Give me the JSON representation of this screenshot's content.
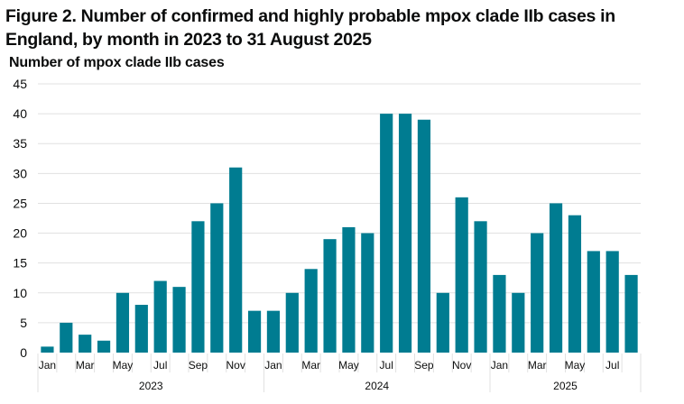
{
  "chart_data": {
    "type": "bar",
    "title": "Figure 2. Number of confirmed and highly probable mpox clade IIb cases in England, by month in 2023 to 31 August 2025",
    "xlabel": "",
    "ylabel": "Number of mpox clade IIb cases",
    "ylim": [
      0,
      45
    ],
    "yticks": [
      0,
      5,
      10,
      15,
      20,
      25,
      30,
      35,
      40,
      45
    ],
    "grid": true,
    "bar_color": "#007c91",
    "categories": [
      "Jan 2023",
      "Feb 2023",
      "Mar 2023",
      "Apr 2023",
      "May 2023",
      "Jun 2023",
      "Jul 2023",
      "Aug 2023",
      "Sep 2023",
      "Oct 2023",
      "Nov 2023",
      "Dec 2023",
      "Jan 2024",
      "Feb 2024",
      "Mar 2024",
      "Apr 2024",
      "May 2024",
      "Jun 2024",
      "Jul 2024",
      "Aug 2024",
      "Sep 2024",
      "Oct 2024",
      "Nov 2024",
      "Dec 2024",
      "Jan 2025",
      "Feb 2025",
      "Mar 2025",
      "Apr 2025",
      "May 2025",
      "Jun 2025",
      "Jul 2025",
      "Aug 2025"
    ],
    "month_labels": [
      "Jan",
      "",
      "Mar",
      "",
      "May",
      "",
      "Jul",
      "",
      "Sep",
      "",
      "Nov",
      "",
      "Jan",
      "",
      "Mar",
      "",
      "May",
      "",
      "Jul",
      "",
      "Sep",
      "",
      "Nov",
      "",
      "Jan",
      "",
      "Mar",
      "",
      "May",
      "",
      "Jul",
      ""
    ],
    "year_groups": [
      {
        "label": "2023",
        "count": 12
      },
      {
        "label": "2024",
        "count": 12
      },
      {
        "label": "2025",
        "count": 8
      }
    ],
    "values": [
      1,
      5,
      3,
      2,
      10,
      8,
      12,
      11,
      22,
      25,
      31,
      7,
      7,
      10,
      14,
      19,
      21,
      20,
      40,
      40,
      39,
      10,
      26,
      22,
      13,
      10,
      20,
      25,
      23,
      17,
      17,
      13
    ]
  }
}
